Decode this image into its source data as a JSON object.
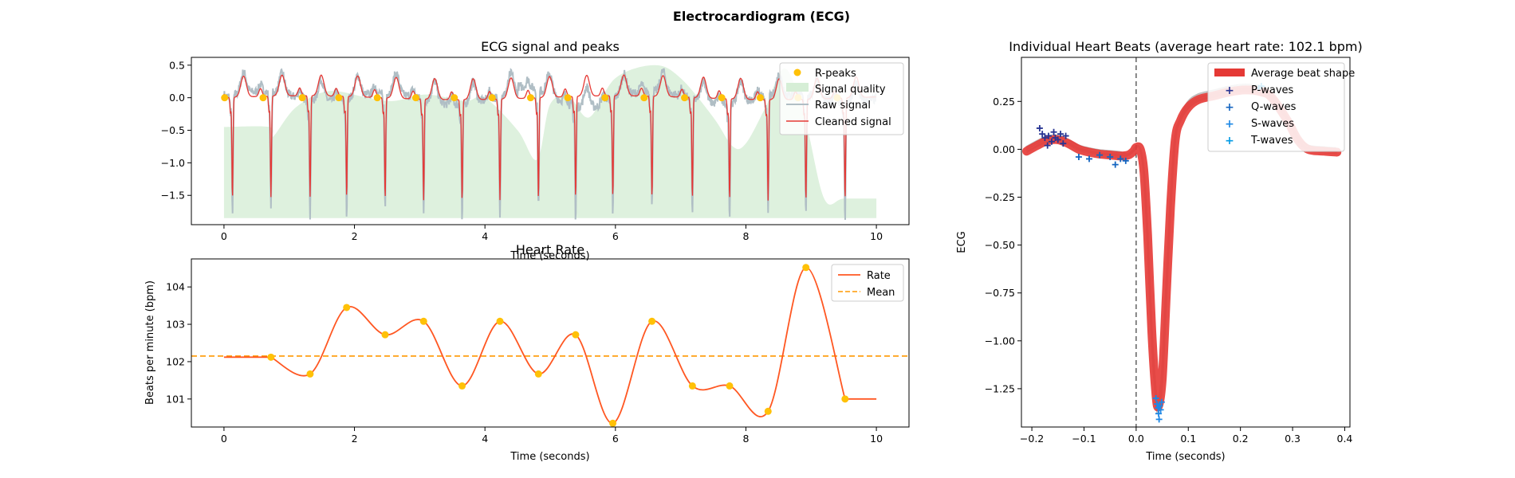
{
  "figure": {
    "title": "Electrocardiogram (ECG)"
  },
  "chart_data": [
    {
      "id": "ecg_signal",
      "type": "line",
      "title": "ECG signal and peaks",
      "xlabel": "Time (seconds)",
      "ylabel": "",
      "xlim": [
        -0.5,
        10.5
      ],
      "ylim": [
        -1.95,
        0.62
      ],
      "xticks": [
        0,
        2,
        4,
        6,
        8,
        10
      ],
      "yticks": [
        -1.5,
        -1.0,
        -0.5,
        0.0,
        0.5
      ],
      "grid": false,
      "legend": "top-right",
      "legend_entries": [
        "R-peaks",
        "Signal quality",
        "Raw signal",
        "Cleaned signal"
      ],
      "colors": {
        "rpeaks": "#FFC107",
        "quality": "#D6EED6",
        "raw": "#B0BEC5",
        "cleaned": "#E53935"
      },
      "r_peaks_x": [
        0.13,
        0.72,
        1.32,
        1.88,
        2.47,
        3.06,
        3.65,
        4.23,
        4.82,
        5.39,
        5.96,
        6.56,
        7.18,
        7.75,
        8.34,
        8.92,
        9.52
      ],
      "r_peak_value": -1.75,
      "signal_quality": [
        [
          0.0,
          -0.45
        ],
        [
          0.7,
          -0.45
        ],
        [
          0.75,
          -0.6
        ],
        [
          1.1,
          -0.15
        ],
        [
          1.6,
          0.1
        ],
        [
          2.2,
          0.0
        ],
        [
          2.6,
          -0.05
        ],
        [
          3.1,
          0.05
        ],
        [
          3.7,
          -0.05
        ],
        [
          4.0,
          0.0
        ],
        [
          4.5,
          -0.5
        ],
        [
          4.8,
          -0.95
        ],
        [
          5.0,
          -0.1
        ],
        [
          5.3,
          0.0
        ],
        [
          5.6,
          -0.3
        ],
        [
          6.0,
          0.3
        ],
        [
          6.6,
          0.5
        ],
        [
          7.0,
          0.3
        ],
        [
          7.5,
          -0.3
        ],
        [
          7.8,
          -0.75
        ],
        [
          8.0,
          -0.7
        ],
        [
          8.3,
          -0.15
        ],
        [
          8.6,
          0.45
        ],
        [
          8.9,
          -0.3
        ],
        [
          9.2,
          -1.55
        ],
        [
          9.5,
          -1.55
        ],
        [
          10.0,
          -1.55
        ]
      ]
    },
    {
      "id": "heart_rate",
      "type": "line",
      "title": "Heart Rate",
      "xlabel": "Time (seconds)",
      "ylabel": "Beats per minute (bpm)",
      "xlim": [
        -0.5,
        10.5
      ],
      "ylim": [
        100.25,
        104.75
      ],
      "xticks": [
        0,
        2,
        4,
        6,
        8,
        10
      ],
      "yticks": [
        101,
        102,
        103,
        104
      ],
      "grid": false,
      "legend": "top-right",
      "legend_entries": [
        "Rate",
        "Mean"
      ],
      "colors": {
        "rate": "#FF5722",
        "mean": "#FF9800",
        "points": "#FFC107"
      },
      "mean": 102.15,
      "rate_points": [
        [
          0.72,
          102.12
        ],
        [
          1.32,
          101.67
        ],
        [
          1.88,
          103.45
        ],
        [
          2.47,
          102.72
        ],
        [
          3.06,
          103.08
        ],
        [
          3.65,
          101.35
        ],
        [
          4.23,
          103.08
        ],
        [
          4.82,
          101.67
        ],
        [
          5.39,
          102.72
        ],
        [
          5.96,
          100.35
        ],
        [
          6.56,
          103.08
        ],
        [
          7.18,
          101.35
        ],
        [
          7.75,
          101.35
        ],
        [
          8.34,
          100.67
        ],
        [
          8.92,
          104.52
        ],
        [
          9.52,
          101.0
        ]
      ],
      "rate_start": [
        0.0,
        102.12
      ],
      "rate_end": [
        10.0,
        101.0
      ]
    },
    {
      "id": "heart_beats",
      "type": "line",
      "title": "Individual Heart Beats (average heart rate: 102.1 bpm)",
      "xlabel": "Time (seconds)",
      "ylabel": "ECG",
      "xlim": [
        -0.22,
        0.41
      ],
      "ylim": [
        -1.45,
        0.48
      ],
      "xticks": [
        -0.2,
        -0.1,
        0.0,
        0.1,
        0.2,
        0.3,
        0.4
      ],
      "yticks": [
        -1.25,
        -1.0,
        -0.75,
        -0.5,
        -0.25,
        0.0,
        0.25
      ],
      "grid": false,
      "legend": "top-right",
      "legend_entries": [
        "Average beat shape",
        "P-waves",
        "Q-waves",
        "S-waves",
        "T-waves"
      ],
      "colors": {
        "average": "#E53935",
        "p": "#283593",
        "q": "#1565C0",
        "s": "#1E88E5",
        "t": "#039BE5",
        "beats": "#BDBDBD",
        "vline": "#555555"
      },
      "vline_x": 0.0,
      "average_beat": [
        [
          -0.21,
          -0.01
        ],
        [
          -0.19,
          0.02
        ],
        [
          -0.17,
          0.045
        ],
        [
          -0.15,
          0.05
        ],
        [
          -0.13,
          0.03
        ],
        [
          -0.11,
          0.0
        ],
        [
          -0.09,
          -0.015
        ],
        [
          -0.07,
          -0.025
        ],
        [
          -0.05,
          -0.03
        ],
        [
          -0.03,
          -0.035
        ],
        [
          -0.015,
          -0.03
        ],
        [
          -0.005,
          -0.01
        ],
        [
          0.0,
          0.01
        ],
        [
          0.008,
          0.0
        ],
        [
          0.015,
          -0.12
        ],
        [
          0.022,
          -0.45
        ],
        [
          0.03,
          -0.95
        ],
        [
          0.038,
          -1.28
        ],
        [
          0.043,
          -1.34
        ],
        [
          0.05,
          -1.2
        ],
        [
          0.058,
          -0.75
        ],
        [
          0.066,
          -0.3
        ],
        [
          0.075,
          0.05
        ],
        [
          0.085,
          0.15
        ],
        [
          0.1,
          0.22
        ],
        [
          0.12,
          0.26
        ],
        [
          0.15,
          0.28
        ],
        [
          0.18,
          0.3
        ],
        [
          0.21,
          0.31
        ],
        [
          0.24,
          0.3
        ],
        [
          0.26,
          0.27
        ],
        [
          0.29,
          0.15
        ],
        [
          0.31,
          0.05
        ],
        [
          0.33,
          0.0
        ],
        [
          0.36,
          -0.01
        ],
        [
          0.385,
          -0.015
        ]
      ],
      "p_waves": [
        [
          -0.185,
          0.11
        ],
        [
          -0.18,
          0.08
        ],
        [
          -0.175,
          0.06
        ],
        [
          -0.17,
          0.02
        ],
        [
          -0.168,
          0.07
        ],
        [
          -0.162,
          0.04
        ],
        [
          -0.158,
          0.09
        ],
        [
          -0.155,
          0.06
        ],
        [
          -0.15,
          0.05
        ],
        [
          -0.145,
          0.08
        ],
        [
          -0.14,
          0.03
        ],
        [
          -0.135,
          0.07
        ]
      ],
      "q_waves": [
        [
          -0.11,
          -0.04
        ],
        [
          -0.09,
          -0.05
        ],
        [
          -0.07,
          -0.03
        ],
        [
          -0.05,
          -0.04
        ],
        [
          -0.04,
          -0.08
        ],
        [
          -0.03,
          -0.05
        ],
        [
          -0.02,
          -0.06
        ]
      ],
      "s_waves": [
        [
          0.038,
          -1.3
        ],
        [
          0.04,
          -1.33
        ],
        [
          0.042,
          -1.35
        ],
        [
          0.043,
          -1.38
        ],
        [
          0.045,
          -1.34
        ],
        [
          0.047,
          -1.36
        ],
        [
          0.049,
          -1.32
        ],
        [
          0.044,
          -1.41
        ]
      ],
      "t_waves": [
        [
          0.235,
          0.32
        ],
        [
          0.24,
          0.33
        ]
      ]
    }
  ]
}
